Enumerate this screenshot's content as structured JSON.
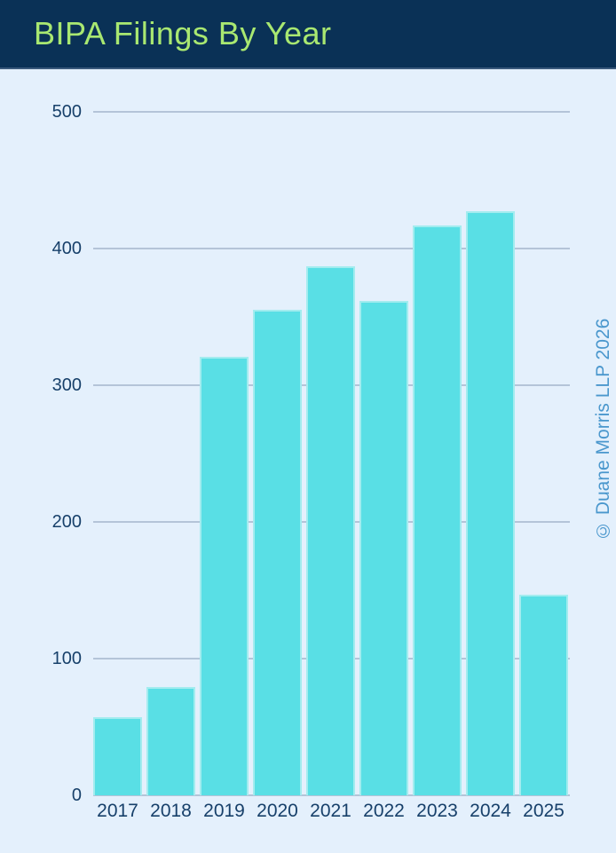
{
  "header": {
    "title": "BIPA Filings By Year",
    "background_color": "#0a3156",
    "title_color": "#a9e871"
  },
  "watermark": {
    "text": "© Duane Morris LLP 2026",
    "color": "#4a97cd"
  },
  "chart_data": {
    "type": "bar",
    "title": "BIPA Filings By Year",
    "categories": [
      "2017",
      "2018",
      "2019",
      "2020",
      "2021",
      "2022",
      "2023",
      "2024",
      "2025"
    ],
    "values": [
      57,
      79,
      321,
      355,
      387,
      362,
      417,
      427,
      147
    ],
    "xlabel": "",
    "ylabel": "",
    "ylim": [
      0,
      500
    ],
    "yticks": [
      0,
      100,
      200,
      300,
      400,
      500
    ],
    "grid": true,
    "legend": false,
    "bar_color": "#59dfe5",
    "bar_border_color": "#a3ecef",
    "gridline_color": "#b4c4d8",
    "tick_label_color": "#17406a",
    "plot_background": "#e4f0fc"
  }
}
